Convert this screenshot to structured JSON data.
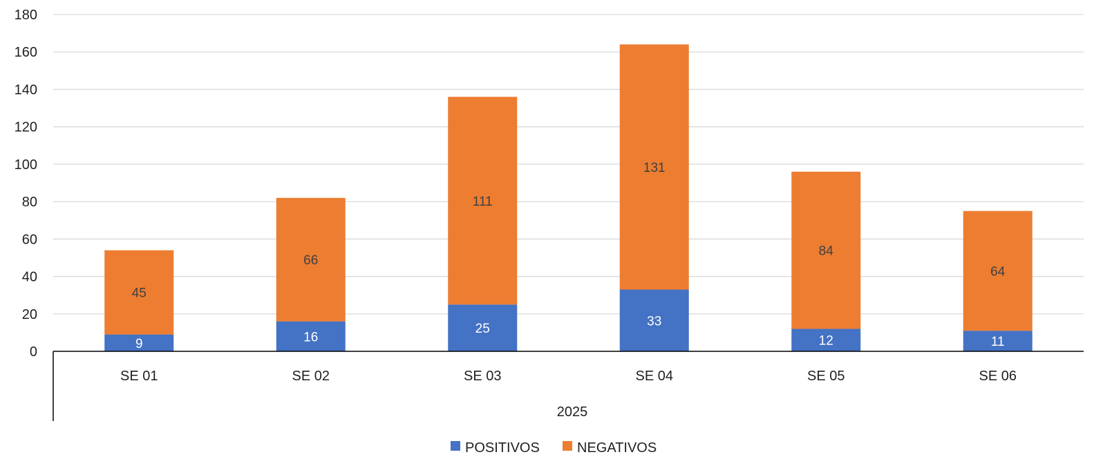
{
  "chart_data": {
    "type": "bar",
    "stacked": true,
    "categories": [
      "SE 01",
      "SE 02",
      "SE 03",
      "SE 04",
      "SE 05",
      "SE 06"
    ],
    "group_label": "2025",
    "series": [
      {
        "name": "POSITIVOS",
        "values": [
          9,
          16,
          25,
          33,
          12,
          11
        ],
        "color": "#4472C4"
      },
      {
        "name": "NEGATIVOS",
        "values": [
          45,
          66,
          111,
          131,
          84,
          64
        ],
        "color": "#ED7D31"
      }
    ],
    "ylim": [
      0,
      180
    ],
    "yticks": [
      0,
      20,
      40,
      60,
      80,
      100,
      120,
      140,
      160,
      180
    ],
    "grid": true,
    "legend_position": "bottom",
    "data_labels": true,
    "title": "",
    "xlabel": "",
    "ylabel": ""
  }
}
